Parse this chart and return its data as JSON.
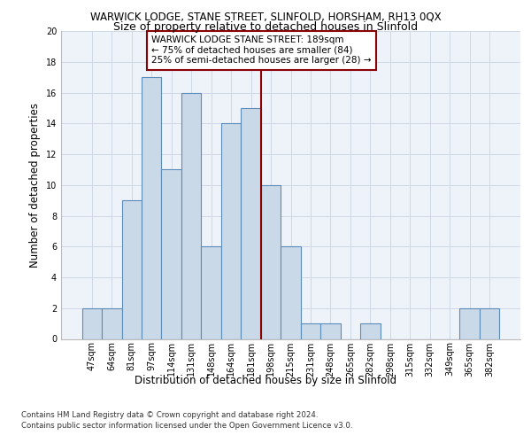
{
  "title": "WARWICK LODGE, STANE STREET, SLINFOLD, HORSHAM, RH13 0QX",
  "subtitle": "Size of property relative to detached houses in Slinfold",
  "xlabel": "Distribution of detached houses by size in Slinfold",
  "ylabel": "Number of detached properties",
  "categories": [
    "47sqm",
    "64sqm",
    "81sqm",
    "97sqm",
    "114sqm",
    "131sqm",
    "148sqm",
    "164sqm",
    "181sqm",
    "198sqm",
    "215sqm",
    "231sqm",
    "248sqm",
    "265sqm",
    "282sqm",
    "298sqm",
    "315sqm",
    "332sqm",
    "349sqm",
    "365sqm",
    "382sqm"
  ],
  "values": [
    2,
    2,
    9,
    17,
    11,
    16,
    6,
    14,
    15,
    10,
    6,
    1,
    1,
    0,
    1,
    0,
    0,
    0,
    0,
    2,
    2
  ],
  "bar_color": "#c9d9e8",
  "bar_edge_color": "#5b8db8",
  "reference_line_index": 8,
  "reference_line_color": "#8b0000",
  "annotation_text": "WARWICK LODGE STANE STREET: 189sqm\n← 75% of detached houses are smaller (84)\n25% of semi-detached houses are larger (28) →",
  "annotation_box_color": "#8b0000",
  "ylim": [
    0,
    20
  ],
  "yticks": [
    0,
    2,
    4,
    6,
    8,
    10,
    12,
    14,
    16,
    18,
    20
  ],
  "grid_color": "#d0d8e8",
  "background_color": "#eef2f9",
  "footer_line1": "Contains HM Land Registry data © Crown copyright and database right 2024.",
  "footer_line2": "Contains public sector information licensed under the Open Government Licence v3.0.",
  "title_fontsize": 8.5,
  "subtitle_fontsize": 9,
  "tick_fontsize": 7,
  "ylabel_fontsize": 8.5,
  "xlabel_fontsize": 8.5,
  "footer_fontsize": 6.2,
  "annotation_fontsize": 7.5
}
